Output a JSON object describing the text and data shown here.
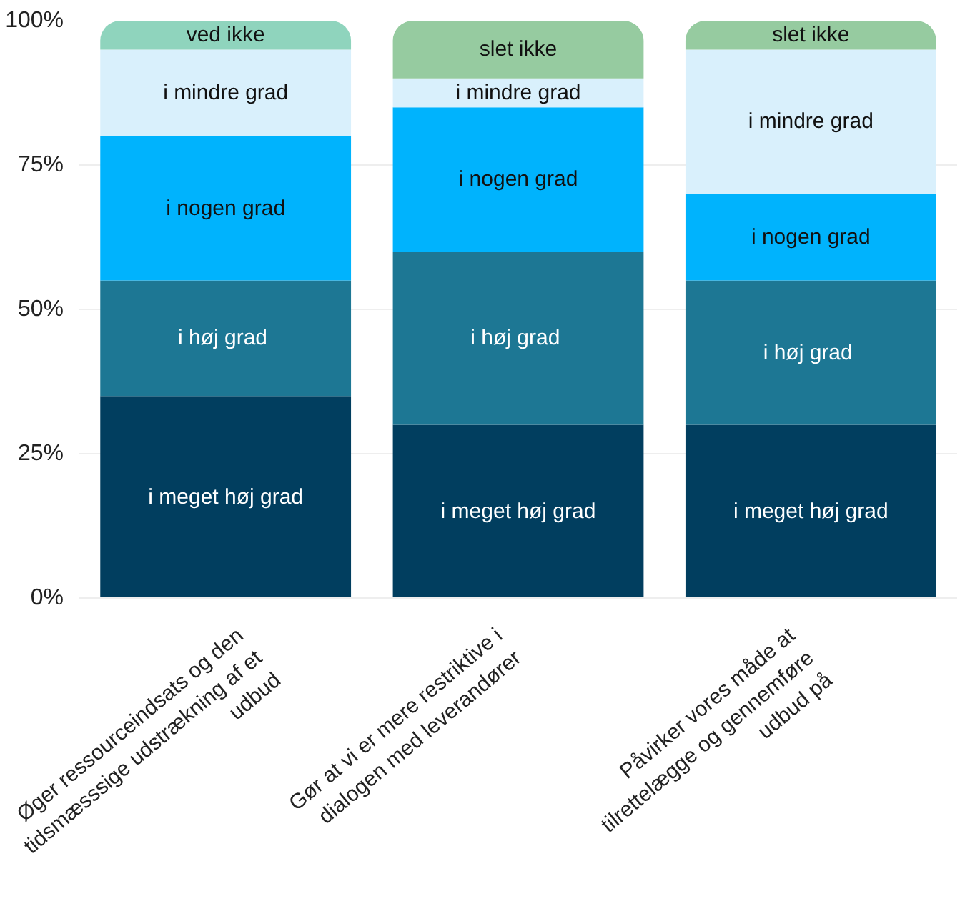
{
  "chart_data": {
    "type": "bar",
    "stacked": true,
    "categories": [
      "Øger ressourceindsats og den tidsmæsssige udstrækning af et udbud",
      "Gør at vi er mere restriktive i dialogen med leverandører",
      "Påvirker vores måde at tilrettelægge og gennemføre udbud på"
    ],
    "series": [
      {
        "name": "i meget høj grad",
        "color": "#013e5f",
        "values": [
          35,
          30,
          30
        ]
      },
      {
        "name": "i  høj grad",
        "color": "#1d7794",
        "values": [
          20,
          30,
          25
        ]
      },
      {
        "name": "i nogen grad",
        "color": "#00b3fd",
        "values": [
          25,
          25,
          15
        ]
      },
      {
        "name": "i mindre grad",
        "color": "#d9f0fc",
        "values": [
          15,
          5,
          25
        ]
      },
      {
        "name": "slet ikke",
        "color": "#96cba0",
        "values": [
          0,
          10,
          5
        ]
      },
      {
        "name": "ved ikke",
        "color": "#8fd4bd",
        "values": [
          5,
          0,
          0
        ]
      }
    ],
    "ylim": [
      0,
      100
    ],
    "yticks": [
      {
        "value": 0,
        "label": "0%"
      },
      {
        "value": 25,
        "label": "25%"
      },
      {
        "value": 50,
        "label": "50%"
      },
      {
        "value": 75,
        "label": "75%"
      },
      {
        "value": 100,
        "label": "100%"
      }
    ],
    "grid": "y"
  }
}
